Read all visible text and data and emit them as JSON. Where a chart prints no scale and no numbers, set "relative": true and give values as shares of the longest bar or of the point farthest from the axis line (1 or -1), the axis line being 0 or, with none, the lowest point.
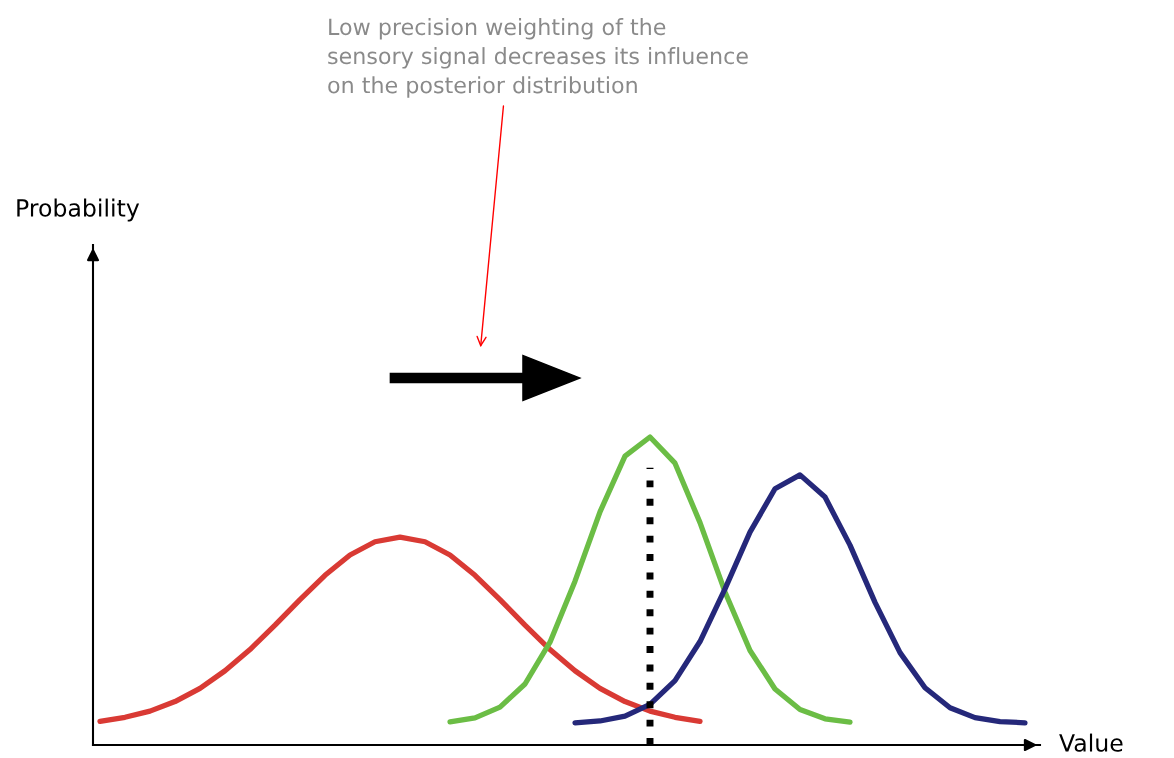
{
  "chart_data": {
    "type": "line",
    "relative": true,
    "xlabel": "Value",
    "categories": [
      null,
      null,
      null,
      null,
      null,
      null,
      null,
      null,
      null,
      null,
      null,
      null,
      null,
      null,
      null,
      null,
      null,
      null,
      null,
      null,
      null,
      null,
      null,
      null,
      null,
      null,
      null,
      null,
      null,
      null,
      null,
      null,
      null,
      null,
      null,
      null,
      null,
      null
    ],
    "series": [
      {
        "color": "#d93a34",
        "values": [
          0.077,
          0.09,
          0.11,
          0.141,
          0.184,
          0.241,
          0.31,
          0.389,
          0.472,
          0.551,
          0.617,
          0.66,
          0.675,
          0.66,
          0.617,
          0.551,
          0.472,
          0.389,
          0.31,
          0.241,
          0.184,
          0.141,
          0.11,
          0.09,
          0.077,
          null,
          null,
          null,
          null,
          null,
          null,
          null,
          null,
          null,
          null,
          null,
          null,
          null
        ]
      },
      {
        "color": "#6bbd45",
        "values": [
          null,
          null,
          null,
          null,
          null,
          null,
          null,
          null,
          null,
          null,
          null,
          null,
          null,
          null,
          0.075,
          0.088,
          0.123,
          0.198,
          0.334,
          0.532,
          0.757,
          0.938,
          1.0,
          0.915,
          0.722,
          0.497,
          0.307,
          0.182,
          0.115,
          0.085,
          0.074,
          null,
          null,
          null,
          null,
          null,
          null,
          null
        ]
      },
      {
        "color": "#25287a",
        "values": [
          null,
          null,
          null,
          null,
          null,
          null,
          null,
          null,
          null,
          null,
          null,
          null,
          null,
          null,
          null,
          null,
          null,
          null,
          null,
          0.072,
          0.078,
          0.094,
          0.132,
          0.209,
          0.336,
          0.507,
          0.691,
          0.832,
          0.877,
          0.805,
          0.649,
          0.463,
          0.3,
          0.186,
          0.121,
          0.089,
          0.076,
          0.072
        ]
      }
    ],
    "annotations": [
      "Low precision weighting of the\nsensory signal decreases its influence\non the posterior distribution",
      "Probability"
    ],
    "legend": false,
    "marker": "none",
    "line_style": "solid"
  }
}
